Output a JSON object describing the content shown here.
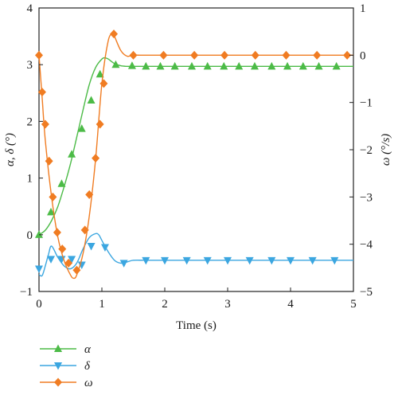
{
  "chart_data": {
    "type": "line",
    "xlabel": "Time (s)",
    "ylabel_left": "α, δ (°)",
    "ylabel_right": "ω (°/s)",
    "xlim": [
      0,
      5
    ],
    "ylim_left": [
      -1,
      4
    ],
    "ylim_right": [
      -5,
      1
    ],
    "xticks": [
      "0",
      "1",
      "2",
      "3",
      "4",
      "5"
    ],
    "yticks_left": [
      "−1",
      "0",
      "1",
      "2",
      "3",
      "4"
    ],
    "yticks_right": [
      "−5",
      "−4",
      "−3",
      "−2",
      "−1",
      "0",
      "1"
    ],
    "grid": false,
    "legend_position": "below-left",
    "series": [
      {
        "name": "α",
        "axis": "left",
        "color": "#4cbb47",
        "marker": "triangle-up",
        "x": [
          0,
          0.1,
          0.2,
          0.3,
          0.4,
          0.5,
          0.6,
          0.7,
          0.8,
          0.9,
          1.0,
          1.05,
          1.1,
          1.2,
          1.3,
          1.4,
          1.5,
          1.7,
          2.0,
          2.5,
          3.0,
          3.5,
          4.0,
          4.5,
          5.0
        ],
        "y": [
          0.0,
          0.08,
          0.25,
          0.5,
          0.85,
          1.25,
          1.72,
          2.2,
          2.65,
          2.95,
          3.1,
          3.12,
          3.1,
          3.02,
          2.98,
          2.97,
          2.97,
          2.97,
          2.97,
          2.97,
          2.97,
          2.97,
          2.97,
          2.97,
          2.97
        ],
        "marker_x": [
          0,
          0.19,
          0.36,
          0.52,
          0.68,
          0.83,
          0.97,
          1.22,
          1.48,
          1.7,
          1.93,
          2.16,
          2.43,
          2.68,
          2.94,
          3.18,
          3.43,
          3.7,
          3.95,
          4.2,
          4.45,
          4.73
        ],
        "marker_y": [
          0.0,
          0.4,
          0.9,
          1.42,
          1.87,
          2.37,
          2.83,
          3.0,
          2.98,
          2.97,
          2.97,
          2.97,
          2.97,
          2.97,
          2.97,
          2.97,
          2.97,
          2.97,
          2.97,
          2.97,
          2.97,
          2.97
        ]
      },
      {
        "name": "δ",
        "axis": "left",
        "color": "#3ba6e0",
        "marker": "triangle-down",
        "x": [
          0,
          0.05,
          0.1,
          0.15,
          0.2,
          0.3,
          0.4,
          0.5,
          0.6,
          0.7,
          0.8,
          0.9,
          0.95,
          1.0,
          1.1,
          1.2,
          1.3,
          1.4,
          1.5,
          1.7,
          2.0,
          2.5,
          3.0,
          3.5,
          4.0,
          4.5,
          5.0
        ],
        "y": [
          -0.7,
          -0.72,
          -0.55,
          -0.35,
          -0.2,
          -0.4,
          -0.55,
          -0.6,
          -0.5,
          -0.25,
          -0.05,
          0.02,
          0.0,
          -0.1,
          -0.3,
          -0.45,
          -0.5,
          -0.48,
          -0.45,
          -0.45,
          -0.45,
          -0.45,
          -0.45,
          -0.45,
          -0.45,
          -0.45,
          -0.45
        ],
        "marker_x": [
          0,
          0.19,
          0.36,
          0.52,
          0.68,
          0.83,
          1.05,
          1.35,
          1.7,
          2.0,
          2.35,
          2.68,
          3.0,
          3.35,
          3.7,
          4.0,
          4.35,
          4.7
        ],
        "marker_y": [
          -0.6,
          -0.43,
          -0.43,
          -0.43,
          -0.53,
          -0.2,
          -0.22,
          -0.5,
          -0.45,
          -0.45,
          -0.45,
          -0.45,
          -0.45,
          -0.45,
          -0.45,
          -0.45,
          -0.45,
          -0.45
        ]
      },
      {
        "name": "ω",
        "axis": "right",
        "color": "#f07c22",
        "marker": "diamond",
        "x": [
          0,
          0.05,
          0.1,
          0.2,
          0.3,
          0.4,
          0.5,
          0.55,
          0.6,
          0.7,
          0.8,
          0.9,
          1.0,
          1.1,
          1.17,
          1.2,
          1.3,
          1.4,
          1.5,
          1.7,
          2.0,
          2.5,
          3.0,
          3.5,
          4.0,
          4.5,
          5.0
        ],
        "y": [
          0.0,
          -0.9,
          -1.8,
          -3.0,
          -3.85,
          -4.35,
          -4.65,
          -4.72,
          -4.65,
          -4.2,
          -3.4,
          -2.2,
          -0.6,
          0.3,
          0.45,
          0.4,
          0.1,
          -0.02,
          0.0,
          0.0,
          0.0,
          0.0,
          0.0,
          0.0,
          0.0,
          0.0,
          0.0
        ],
        "marker_x": [
          0,
          0.05,
          0.1,
          0.16,
          0.22,
          0.29,
          0.37,
          0.47,
          0.6,
          0.73,
          0.8,
          0.9,
          0.97,
          1.03,
          1.19,
          1.5,
          1.98,
          2.47,
          2.95,
          3.44,
          3.93,
          4.42,
          4.9
        ],
        "marker_y": [
          0.0,
          -0.78,
          -1.46,
          -2.24,
          -3.0,
          -3.75,
          -4.1,
          -4.4,
          -4.55,
          -3.7,
          -2.95,
          -2.18,
          -1.46,
          -0.6,
          0.45,
          0.0,
          0.0,
          0.0,
          0.0,
          0.0,
          0.0,
          0.0,
          0.0
        ]
      }
    ]
  }
}
